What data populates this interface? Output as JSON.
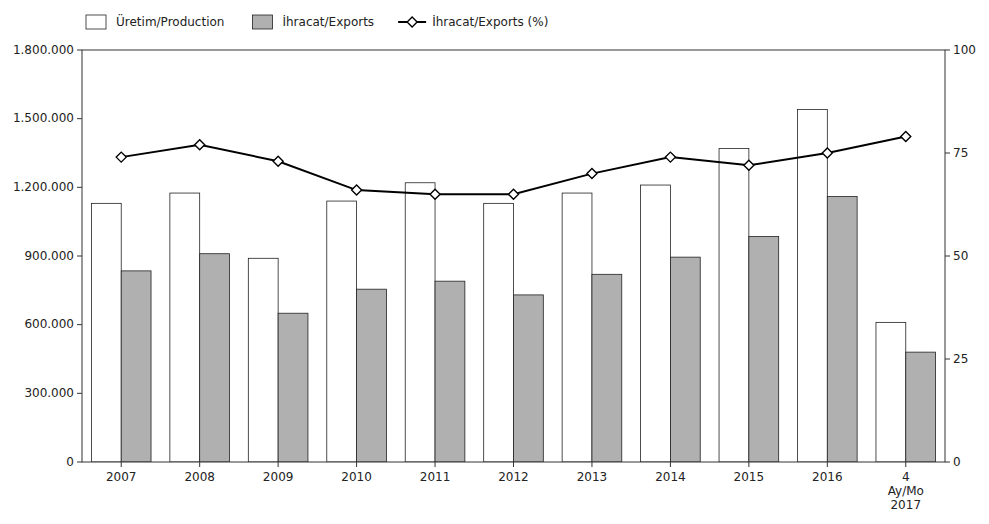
{
  "chart_data": {
    "type": "bar",
    "categories": [
      "2007",
      "2008",
      "2009",
      "2010",
      "2011",
      "2012",
      "2013",
      "2014",
      "2015",
      "2016",
      "4\nAy/Mo\n2017"
    ],
    "series": [
      {
        "name": "Üretim/Production",
        "type": "bar",
        "color": "#ffffff",
        "values": [
          1130000,
          1175000,
          890000,
          1140000,
          1220000,
          1130000,
          1175000,
          1210000,
          1370000,
          1540000,
          610000
        ]
      },
      {
        "name": "İhracat/Exports",
        "type": "bar",
        "color": "#b0b0b0",
        "values": [
          835000,
          910000,
          650000,
          755000,
          790000,
          730000,
          820000,
          895000,
          985000,
          1160000,
          480000
        ]
      },
      {
        "name": "İhracat/Exports (%)",
        "type": "line",
        "color": "#000000",
        "marker": "diamond",
        "axis": "y2",
        "values": [
          74,
          77,
          73,
          66,
          65,
          65,
          70,
          74,
          72,
          75,
          79
        ]
      }
    ],
    "ylim": [
      0,
      1800000
    ],
    "yticks": [
      0,
      {
        "value": 300000,
        "label": "300.000"
      },
      {
        "value": 600000,
        "label": "600.000"
      },
      {
        "value": 900000,
        "label": "900.000"
      },
      {
        "value": 1200000,
        "label": "1.200.000"
      },
      {
        "value": 1500000,
        "label": "1.500.000"
      },
      {
        "value": 1800000,
        "label": "1.800.000"
      }
    ],
    "y2lim": [
      0,
      100
    ],
    "y2ticks": [
      0,
      25,
      50,
      75,
      100
    ],
    "grid": false,
    "legend": "top"
  }
}
